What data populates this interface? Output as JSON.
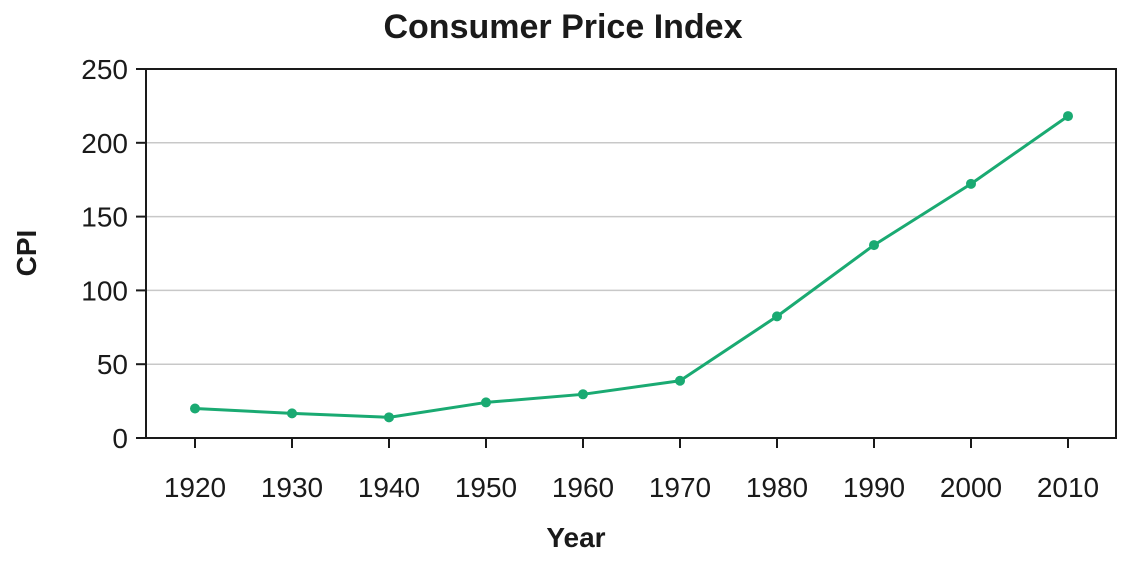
{
  "chart_data": {
    "type": "line",
    "title": "Consumer Price Index",
    "xlabel": "Year",
    "ylabel": "CPI",
    "x": [
      1920,
      1930,
      1940,
      1950,
      1960,
      1970,
      1980,
      1990,
      2000,
      2010
    ],
    "categories": [
      "1920",
      "1930",
      "1940",
      "1950",
      "1960",
      "1970",
      "1980",
      "1990",
      "2000",
      "2010"
    ],
    "series": [
      {
        "values": [
          20,
          16.7,
          14,
          24.1,
          29.6,
          38.8,
          82.4,
          130.7,
          172.2,
          218.1
        ]
      }
    ],
    "ylim": [
      0,
      250
    ],
    "yticks": [
      0,
      50,
      100,
      150,
      200,
      250
    ],
    "grid": "horizontal",
    "colors": {
      "line": "#1aaa72",
      "grid": "#c8c8c8",
      "axis": "#1a1a1a",
      "text": "#1a1a1a"
    }
  }
}
